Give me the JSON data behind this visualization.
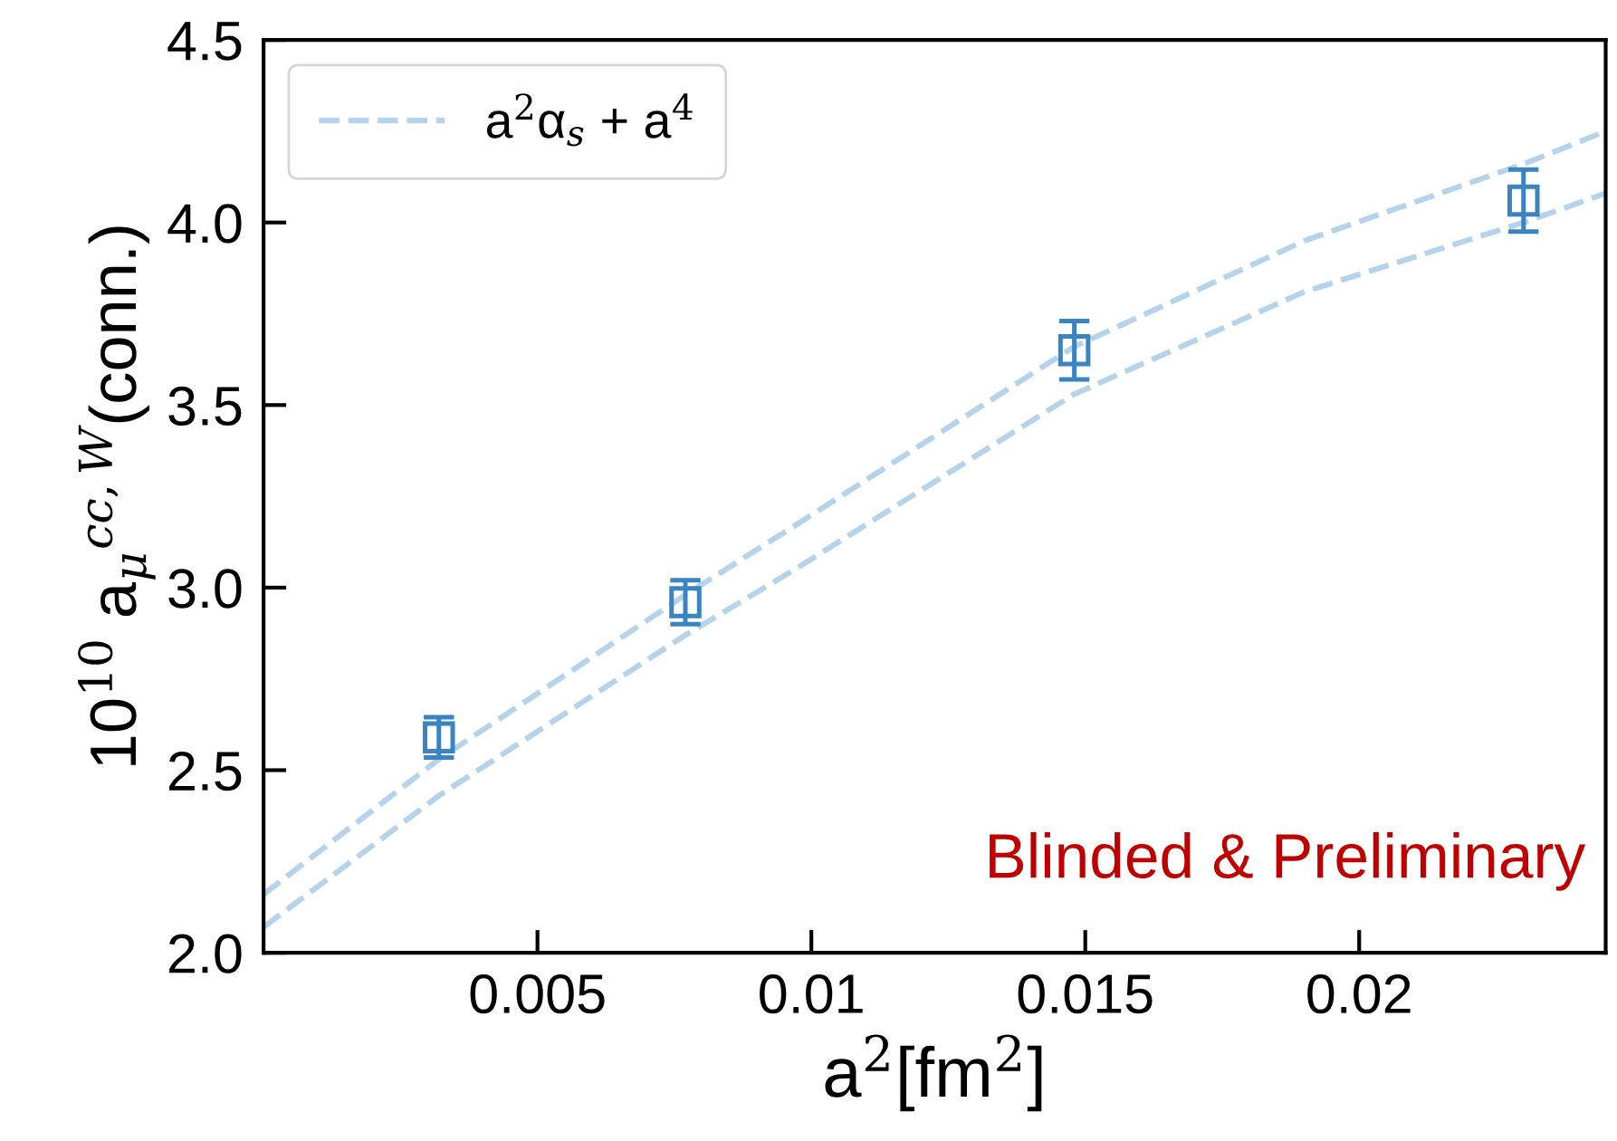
{
  "chart_data": {
    "type": "scatter",
    "xlabel": "a$^{2}$[fm$^{2}$]",
    "ylabel": "10$^{10}$ a$_{μ}$$^{cc,W}$(conn.)",
    "xlim": [
      0,
      0.0245
    ],
    "xticks": [
      0.005,
      0.01,
      0.015,
      0.02
    ],
    "ylim": [
      2.0,
      4.5
    ],
    "yticks": [
      {
        "value": 2.0,
        "label": "2.0"
      },
      {
        "value": 2.5,
        "label": "2.5"
      },
      {
        "value": 3.0,
        "label": "3.0"
      },
      {
        "value": 3.5,
        "label": "3.5"
      },
      {
        "value": 4.0,
        "label": "4.0"
      },
      {
        "value": 4.5,
        "label": "4.5"
      }
    ],
    "grid": false,
    "legend": "top left",
    "marker": "square",
    "annotations": [
      "Blinded & Preliminary"
    ],
    "series": [
      {
        "name": "a$^{2}$α$_{s}$ + a$^{4}$",
        "type": "line",
        "line_style": "dashed",
        "marker": "none",
        "color": "#b5d3ea",
        "x": [
          0,
          0.0032,
          0.0077,
          0.0097,
          0.0148,
          0.019,
          0.023,
          0.0245
        ],
        "values": [
          2.16,
          2.53,
          2.98,
          3.17,
          3.66,
          3.95,
          4.16,
          4.25
        ]
      },
      {
        "type": "line",
        "line_style": "dashed",
        "marker": "none",
        "color": "#b5d3ea",
        "x": [
          0,
          0.0032,
          0.0077,
          0.0097,
          0.0148,
          0.019,
          0.023,
          0.0245
        ],
        "values": [
          2.07,
          2.43,
          2.87,
          3.05,
          3.53,
          3.81,
          4.0,
          4.08
        ]
      },
      {
        "color": "#3a84c1",
        "x": [
          0.0032,
          0.0077,
          0.0148,
          0.023
        ],
        "values": [
          2.59,
          2.96,
          3.65,
          4.06
        ],
        "errors": [
          0.055,
          0.06,
          0.08,
          0.085
        ]
      }
    ]
  }
}
